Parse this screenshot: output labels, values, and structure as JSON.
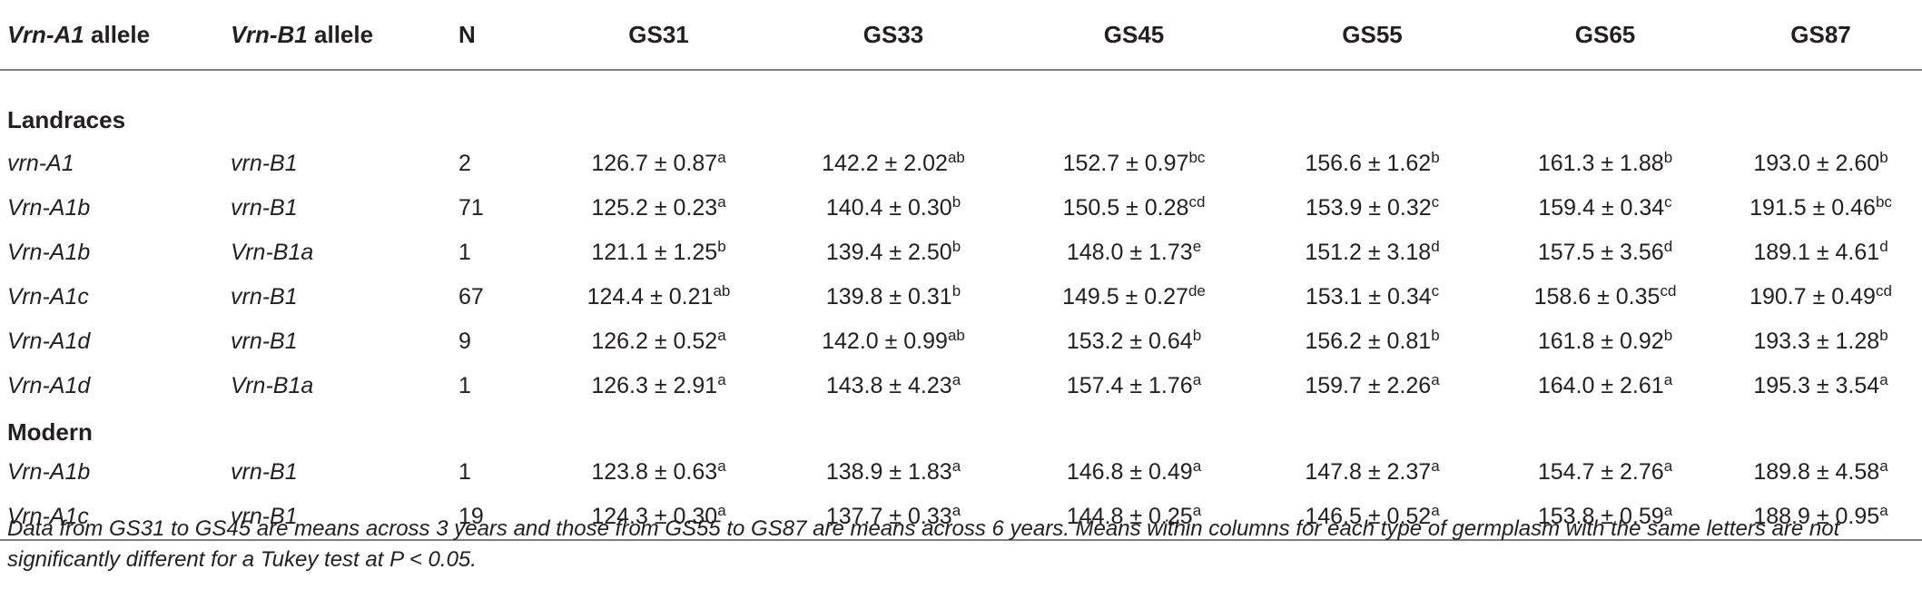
{
  "headers": {
    "vrn_a1": "Vrn-A1",
    "vrn_a1_suffix": " allele",
    "vrn_b1": "Vrn-B1",
    "vrn_b1_suffix": " allele",
    "n": "N",
    "gs": [
      "GS31",
      "GS33",
      "GS45",
      "GS55",
      "GS65",
      "GS87"
    ]
  },
  "sections": [
    {
      "label": "Landraces",
      "rows": [
        {
          "a1": "vrn-A1",
          "b1": "vrn-B1",
          "n": "2",
          "cells": [
            {
              "v": "126.7 ± 0.87",
              "s": "a"
            },
            {
              "v": "142.2 ± 2.02",
              "s": "ab"
            },
            {
              "v": "152.7 ± 0.97",
              "s": "bc"
            },
            {
              "v": "156.6 ± 1.62",
              "s": "b"
            },
            {
              "v": "161.3 ± 1.88",
              "s": "b"
            },
            {
              "v": "193.0 ± 2.60",
              "s": "b"
            }
          ]
        },
        {
          "a1": "Vrn-A1b",
          "b1": "vrn-B1",
          "n": "71",
          "cells": [
            {
              "v": "125.2 ± 0.23",
              "s": "a"
            },
            {
              "v": "140.4 ± 0.30",
              "s": "b"
            },
            {
              "v": "150.5 ± 0.28",
              "s": "cd"
            },
            {
              "v": "153.9 ± 0.32",
              "s": "c"
            },
            {
              "v": "159.4 ± 0.34",
              "s": "c"
            },
            {
              "v": "191.5 ± 0.46",
              "s": "bc"
            }
          ]
        },
        {
          "a1": "Vrn-A1b",
          "b1": "Vrn-B1a",
          "n": "1",
          "cells": [
            {
              "v": "121.1 ± 1.25",
              "s": "b"
            },
            {
              "v": "139.4 ± 2.50",
              "s": "b"
            },
            {
              "v": "148.0 ± 1.73",
              "s": "e"
            },
            {
              "v": "151.2 ± 3.18",
              "s": "d"
            },
            {
              "v": "157.5 ± 3.56",
              "s": "d"
            },
            {
              "v": "189.1 ± 4.61",
              "s": "d"
            }
          ]
        },
        {
          "a1": "Vrn-A1c",
          "b1": "vrn-B1",
          "n": "67",
          "cells": [
            {
              "v": "124.4 ± 0.21",
              "s": "ab"
            },
            {
              "v": "139.8 ± 0.31",
              "s": "b"
            },
            {
              "v": "149.5 ± 0.27",
              "s": "de"
            },
            {
              "v": "153.1 ± 0.34",
              "s": "c"
            },
            {
              "v": "158.6 ± 0.35",
              "s": "cd"
            },
            {
              "v": "190.7 ± 0.49",
              "s": "cd"
            }
          ]
        },
        {
          "a1": "Vrn-A1d",
          "b1": "vrn-B1",
          "n": "9",
          "cells": [
            {
              "v": "126.2 ± 0.52",
              "s": "a"
            },
            {
              "v": "142.0 ± 0.99",
              "s": "ab"
            },
            {
              "v": "153.2 ± 0.64",
              "s": "b"
            },
            {
              "v": "156.2 ± 0.81",
              "s": "b"
            },
            {
              "v": "161.8 ± 0.92",
              "s": "b"
            },
            {
              "v": "193.3 ± 1.28",
              "s": "b"
            }
          ]
        },
        {
          "a1": "Vrn-A1d",
          "b1": "Vrn-B1a",
          "n": "1",
          "cells": [
            {
              "v": "126.3 ± 2.91",
              "s": "a"
            },
            {
              "v": "143.8 ± 4.23",
              "s": "a"
            },
            {
              "v": "157.4 ± 1.76",
              "s": "a"
            },
            {
              "v": "159.7 ± 2.26",
              "s": "a"
            },
            {
              "v": "164.0 ± 2.61",
              "s": "a"
            },
            {
              "v": "195.3 ± 3.54",
              "s": "a"
            }
          ]
        }
      ]
    },
    {
      "label": "Modern",
      "rows": [
        {
          "a1": "Vrn-A1b",
          "b1": "vrn-B1",
          "n": "1",
          "cells": [
            {
              "v": "123.8 ± 0.63",
              "s": "a"
            },
            {
              "v": "138.9 ± 1.83",
              "s": "a"
            },
            {
              "v": "146.8 ± 0.49",
              "s": "a"
            },
            {
              "v": "147.8 ± 2.37",
              "s": "a"
            },
            {
              "v": "154.7 ± 2.76",
              "s": "a"
            },
            {
              "v": "189.8 ± 4.58",
              "s": "a"
            }
          ]
        },
        {
          "a1": "Vrn-A1c",
          "b1": "vrn-B1",
          "n": "19",
          "cells": [
            {
              "v": "124.3 ± 0.30",
              "s": "a"
            },
            {
              "v": "137.7 ± 0.33",
              "s": "a"
            },
            {
              "v": "144.8 ± 0.25",
              "s": "a"
            },
            {
              "v": "146.5 ± 0.52",
              "s": "a"
            },
            {
              "v": "153.8 ± 0.59",
              "s": "a"
            },
            {
              "v": "188.9 ± 0.95",
              "s": "a"
            }
          ]
        }
      ]
    }
  ],
  "footnote": "Data from GS31 to GS45 are means across 3 years and those from GS55 to GS87 are means across 6 years. Means within columns for each type of germplasm with the same letters are not significantly different for a Tukey test at P < 0.05."
}
